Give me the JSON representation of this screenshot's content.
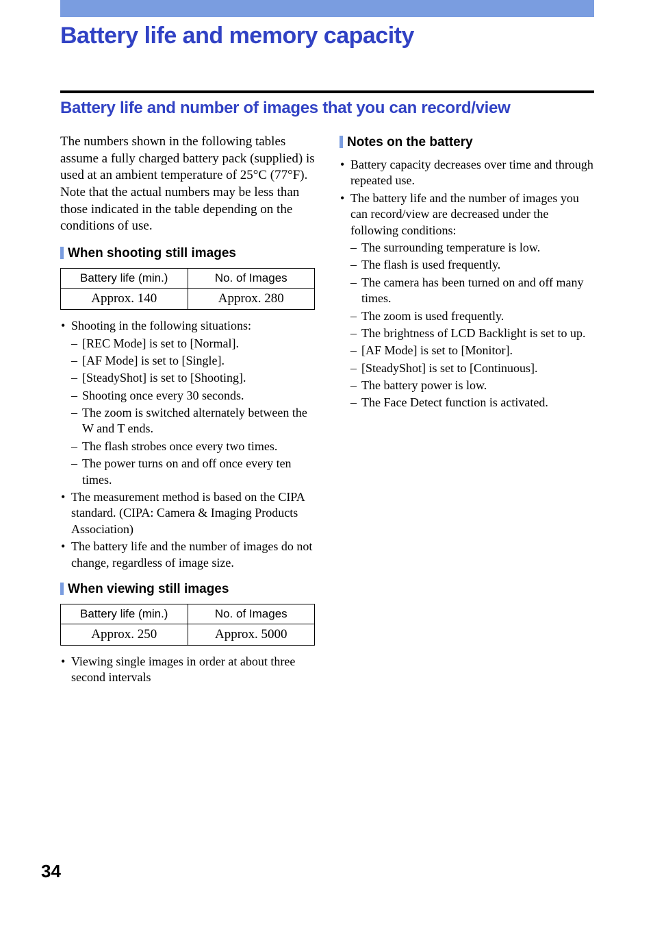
{
  "colors": {
    "accent_bar": "#7a9de0",
    "heading_blue": "#3142c4",
    "rule": "#000000",
    "text": "#000000",
    "background": "#ffffff"
  },
  "typography": {
    "page_title_fontsize": 34,
    "section_title_fontsize": 24,
    "subsection_fontsize": 19,
    "body_fontsize": 19,
    "bullet_fontsize": 18,
    "table_header_fontsize": 17,
    "table_cell_fontsize": 19,
    "page_number_fontsize": 26
  },
  "page_title": "Battery life and memory capacity",
  "section_title": "Battery life and number of images that you can record/view",
  "left": {
    "intro": "The numbers shown in the following tables assume a fully charged battery pack (supplied) is used at an ambient temperature of 25°C (77°F).\nNote that the actual numbers may be less than those indicated in the table depending on the conditions of use.",
    "shooting": {
      "heading": "When shooting still images",
      "table": {
        "columns": [
          "Battery life (min.)",
          "No. of Images"
        ],
        "rows": [
          [
            "Approx. 140",
            "Approx. 280"
          ]
        ]
      },
      "bullets": [
        {
          "text": "Shooting in the following situations:",
          "sub": [
            "[REC Mode] is set to [Normal].",
            "[AF Mode] is set to [Single].",
            "[SteadyShot] is set to [Shooting].",
            "Shooting once every 30 seconds.",
            "The zoom is switched alternately between the W and T ends.",
            "The flash strobes once every two times.",
            "The power turns on and off once every ten times."
          ]
        },
        {
          "text": "The measurement method is based on the CIPA standard. (CIPA: Camera & Imaging Products Association)"
        },
        {
          "text": "The battery life and the number of images do not change, regardless of image size."
        }
      ]
    },
    "viewing": {
      "heading": "When viewing still images",
      "table": {
        "columns": [
          "Battery life (min.)",
          "No. of Images"
        ],
        "rows": [
          [
            "Approx. 250",
            "Approx. 5000"
          ]
        ]
      },
      "bullets": [
        {
          "text": "Viewing single images in order at about three second intervals"
        }
      ]
    }
  },
  "right": {
    "notes": {
      "heading": "Notes on the battery",
      "bullets": [
        {
          "text": "Battery capacity decreases over time and through repeated use."
        },
        {
          "text": "The battery life and the number of images you can record/view are decreased under the following conditions:",
          "sub": [
            "The surrounding temperature is low.",
            "The flash is used frequently.",
            "The camera has been turned on and off many times.",
            "The zoom is used frequently.",
            "The brightness of LCD Backlight is set to up.",
            "[AF Mode] is set to [Monitor].",
            "[SteadyShot] is set to [Continuous].",
            "The battery power is low.",
            "The Face Detect function is activated."
          ]
        }
      ]
    }
  },
  "page_number": "34"
}
